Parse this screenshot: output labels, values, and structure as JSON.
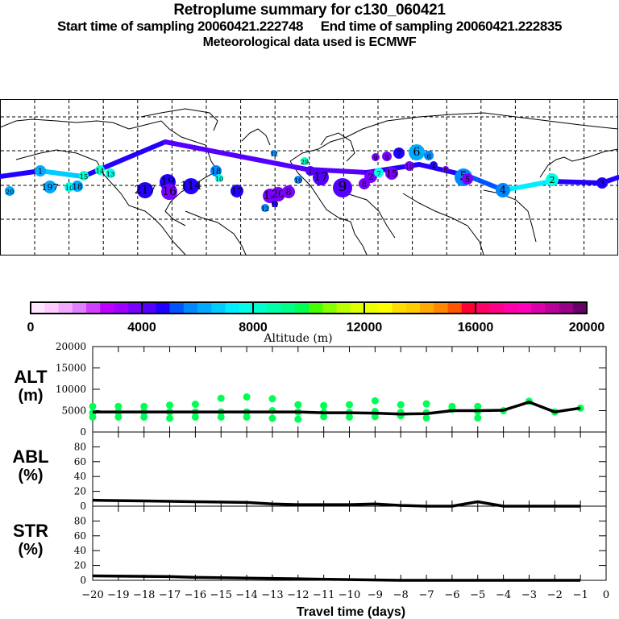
{
  "header": {
    "title": "Retroplume summary for c130_060421",
    "subtitle": "Start time of sampling 20060421.222748     End time of sampling 20060421.222835",
    "met_line": "Meteorological data used is ECMWF"
  },
  "colorbar": {
    "label": "Altitude (m)",
    "tick_labels": [
      "0",
      "4000",
      "8000",
      "12000",
      "16000",
      "20000"
    ],
    "range": [
      0,
      20000
    ],
    "colors": [
      "#ffe6ff",
      "#ffccff",
      "#f2aaff",
      "#e080ff",
      "#d040ff",
      "#bb00ff",
      "#a000ff",
      "#7a00ff",
      "#5500ff",
      "#2200ff",
      "#0055ff",
      "#0088ff",
      "#00aaff",
      "#00ccff",
      "#00eeff",
      "#00ffe6",
      "#00ffcc",
      "#00ffaa",
      "#00ff88",
      "#00ff55",
      "#44ff00",
      "#88ff00",
      "#bbff00",
      "#ddff00",
      "#eeff00",
      "#ffff00",
      "#ffdd00",
      "#ffcc00",
      "#ffaa00",
      "#ff8800",
      "#ff5500",
      "#ff0033",
      "#ff0066",
      "#ff0088",
      "#ff00aa",
      "#ff00bb",
      "#dd00aa",
      "#bb0099",
      "#990088",
      "#660066"
    ]
  },
  "map": {
    "trajectory_main": [
      {
        "lon": -180,
        "lat": 28,
        "alt": 4800
      },
      {
        "lon": -153,
        "lat": 31,
        "alt": 4800
      },
      {
        "lon": -137,
        "lat": 29,
        "alt": 6500
      },
      {
        "lon": -35,
        "lat": 46,
        "alt": 4500
      },
      {
        "lon": -5,
        "lat": 36,
        "alt": 4200
      },
      {
        "lon": 20,
        "lat": 27,
        "alt": 4300
      },
      {
        "lon": 45,
        "lat": 36,
        "alt": 4500
      },
      {
        "lon": 80,
        "lat": 19,
        "alt": 4700
      },
      {
        "lon": 107,
        "lat": 6,
        "alt": 5200
      },
      {
        "lon": 140,
        "lat": 13,
        "alt": 7000
      },
      {
        "lon": 175,
        "lat": 10,
        "alt": 4500
      },
      {
        "lon": 180,
        "lat": 13,
        "alt": 4500
      }
    ],
    "plumes": [
      {
        "lon": -153,
        "lat": 31,
        "r": 7,
        "alt": 6200,
        "label": "1"
      },
      {
        "lon": -178,
        "lat": 12,
        "r": 6,
        "alt": 6200,
        "label": "20"
      },
      {
        "lon": -127,
        "lat": 15,
        "r": 8,
        "alt": 6200,
        "label": "197"
      },
      {
        "lon": -118,
        "lat": 15,
        "r": 6,
        "alt": 7800,
        "label": "10"
      },
      {
        "lon": -113,
        "lat": 16,
        "r": 7,
        "alt": 6200,
        "label": "18"
      },
      {
        "lon": -112,
        "lat": 29,
        "r": 6,
        "alt": 8000,
        "label": "15"
      },
      {
        "lon": -91,
        "lat": 31,
        "r": 6,
        "alt": 8400,
        "label": "14"
      },
      {
        "lon": -75,
        "lat": 28,
        "r": 6,
        "alt": 7900,
        "label": "13"
      },
      {
        "lon": -56,
        "lat": 10,
        "r": 10,
        "alt": 4600,
        "label": "217"
      },
      {
        "lon": -44,
        "lat": 19,
        "r": 10,
        "alt": 4600,
        "label": "19"
      },
      {
        "lon": -41,
        "lat": 9,
        "r": 10,
        "alt": 3500,
        "label": "16"
      },
      {
        "lon": -27,
        "lat": 14,
        "r": 10,
        "alt": 4800,
        "label": "114"
      },
      {
        "lon": -4,
        "lat": 30,
        "r": 7,
        "alt": 5800,
        "label": "18"
      },
      {
        "lon": -2,
        "lat": 26,
        "r": 5,
        "alt": 7800,
        "label": "10"
      },
      {
        "lon": 12,
        "lat": 10,
        "r": 8,
        "alt": 4500,
        "label": "17"
      },
      {
        "lon": 35,
        "lat": 7,
        "r": 9,
        "alt": 3500,
        "label": "16"
      },
      {
        "lon": 42,
        "lat": 8,
        "r": 9,
        "alt": 3500,
        "label": "20"
      },
      {
        "lon": 47,
        "lat": 8,
        "r": 8,
        "alt": 3500,
        "label": "8"
      },
      {
        "lon": 35,
        "lat": 0,
        "r": 5,
        "alt": 5800,
        "label": "12"
      },
      {
        "lon": 42,
        "lat": 1,
        "r": 4,
        "alt": 4800,
        "label": "11"
      },
      {
        "lon": 60,
        "lat": 43,
        "r": 4,
        "alt": 5800,
        "label": "12"
      },
      {
        "lon": 70,
        "lat": 33,
        "r": 5,
        "alt": 8000,
        "label": "29"
      },
      {
        "lon": 64,
        "lat": 23,
        "r": 5,
        "alt": 5800,
        "label": "19"
      },
      {
        "lon": 79,
        "lat": 29,
        "r": 6,
        "alt": 4400,
        "label": "1"
      },
      {
        "lon": 82,
        "lat": 21,
        "r": 10,
        "alt": 4200,
        "label": "17"
      },
      {
        "lon": 90,
        "lat": 17,
        "r": 12,
        "alt": 4300,
        "label": "9"
      },
      {
        "lon": 96,
        "lat": 24,
        "r": 7,
        "alt": 3500,
        "label": "8"
      },
      {
        "lon": 100,
        "lat": 30,
        "r": 8,
        "alt": 3800,
        "label": "2"
      },
      {
        "lon": 107,
        "lat": 32,
        "r": 6,
        "alt": 7500,
        "label": "7"
      },
      {
        "lon": 112,
        "lat": 27,
        "r": 8,
        "alt": 3500,
        "label": "15"
      },
      {
        "lon": 103,
        "lat": 43,
        "r": 5,
        "alt": 3500,
        "label": "9"
      },
      {
        "lon": 108,
        "lat": 39,
        "r": 6,
        "alt": 3500,
        "label": "8"
      },
      {
        "lon": 113,
        "lat": 42,
        "r": 7,
        "alt": 4500,
        "label": "7"
      },
      {
        "lon": 125,
        "lat": 43,
        "r": 10,
        "alt": 6200,
        "label": "6"
      },
      {
        "lon": 133,
        "lat": 43,
        "r": 6,
        "alt": 5500,
        "label": "6"
      },
      {
        "lon": 118,
        "lat": 36,
        "r": 6,
        "alt": 3500,
        "label": "10"
      },
      {
        "lon": 136,
        "lat": 34,
        "r": 5,
        "alt": 4800,
        "label": "4"
      },
      {
        "lon": 141,
        "lat": 31,
        "r": 4,
        "alt": 3500,
        "label": "8"
      },
      {
        "lon": 156,
        "lat": 25,
        "r": 11,
        "alt": 5800,
        "label": "5"
      },
      {
        "lon": 156,
        "lat": 22,
        "r": 7,
        "alt": 3500,
        "label": "5"
      },
      {
        "lon": 185,
        "lat": 10,
        "r": 9,
        "alt": 5800,
        "label": "4"
      },
      {
        "lon": 235,
        "lat": 17,
        "r": 8,
        "alt": 7800,
        "label": "2"
      },
      {
        "lon": 264,
        "lat": 13,
        "r": 7,
        "alt": 4500,
        "label": "3"
      }
    ]
  },
  "chart_data": [
    {
      "type": "scatter",
      "panel": "ALT",
      "ylabel": "ALT\n(m)",
      "ylim": [
        0,
        20000
      ],
      "yticks": [
        "0",
        "5000",
        "10000",
        "15000",
        "20000"
      ],
      "xlim": [
        -20,
        0
      ],
      "line": {
        "x": [
          -20,
          -19,
          -18,
          -17,
          -16,
          -15,
          -14,
          -13,
          -12,
          -11,
          -10,
          -9,
          -8,
          -7,
          -6,
          -5,
          -4,
          -3,
          -2,
          -1
        ],
        "y": [
          4700,
          4700,
          4700,
          4700,
          4700,
          4700,
          4700,
          4700,
          4700,
          4500,
          4500,
          4400,
          4200,
          4300,
          5000,
          5000,
          5100,
          7000,
          4700,
          5600
        ]
      },
      "points": {
        "x": [
          -20,
          -20,
          -20,
          -19,
          -19,
          -19,
          -18,
          -18,
          -18,
          -17,
          -17,
          -17,
          -16,
          -16,
          -16,
          -15,
          -15,
          -15,
          -14,
          -14,
          -14,
          -13,
          -13,
          -13,
          -12,
          -12,
          -12,
          -11,
          -11,
          -11,
          -10,
          -10,
          -10,
          -9,
          -9,
          -9,
          -8,
          -8,
          -8,
          -7,
          -7,
          -7,
          -6,
          -6,
          -5,
          -5,
          -5,
          -4,
          -3,
          -2,
          -1
        ],
        "y": [
          6000,
          4500,
          3500,
          6000,
          4700,
          3500,
          6000,
          4700,
          3500,
          6300,
          4700,
          3200,
          6500,
          4700,
          3500,
          7900,
          4700,
          3500,
          8200,
          4700,
          3500,
          7800,
          5000,
          3200,
          6400,
          4700,
          3000,
          6200,
          4600,
          3600,
          6400,
          4600,
          3500,
          7300,
          4800,
          3600,
          6400,
          4600,
          3800,
          6600,
          4500,
          3300,
          6000,
          5300,
          6000,
          4800,
          3300,
          5000,
          7200,
          4700,
          5600
        ]
      },
      "point_color": "#00ff55"
    },
    {
      "type": "line",
      "panel": "ABL",
      "ylabel": "ABL\n(%)",
      "ylim": [
        0,
        100
      ],
      "yticks": [
        "0",
        "20",
        "40",
        "60",
        "80"
      ],
      "xlim": [
        -20,
        0
      ],
      "x": [
        -20,
        -18,
        -16,
        -14,
        -13,
        -12,
        -11,
        -10,
        -9,
        -8,
        -7,
        -6,
        -5.5,
        -5,
        -4.5,
        -4,
        -3,
        -2,
        -1
      ],
      "y": [
        8,
        7,
        6,
        5,
        3,
        2,
        2,
        2,
        3,
        1,
        0,
        0,
        3,
        6,
        3,
        0,
        0,
        0,
        0
      ]
    },
    {
      "type": "line",
      "panel": "STR",
      "ylabel": "STR\n(%)",
      "ylim": [
        0,
        100
      ],
      "yticks": [
        "0",
        "20",
        "40",
        "60",
        "80"
      ],
      "xlim": [
        -20,
        0
      ],
      "xlabel": "Travel time (days)",
      "xticks": [
        "−20",
        "−19",
        "−18",
        "−17",
        "−16",
        "−15",
        "−14",
        "−13",
        "−12",
        "−11",
        "−10",
        "−9",
        "−8",
        "−7",
        "−6",
        "−5",
        "−4",
        "−3",
        "−2",
        "−1",
        "0"
      ],
      "x": [
        -20,
        -17,
        -16,
        -14,
        -12,
        -10,
        -8,
        -7,
        -1
      ],
      "y": [
        6,
        5,
        4,
        3,
        2,
        1,
        0,
        0,
        0
      ]
    }
  ]
}
